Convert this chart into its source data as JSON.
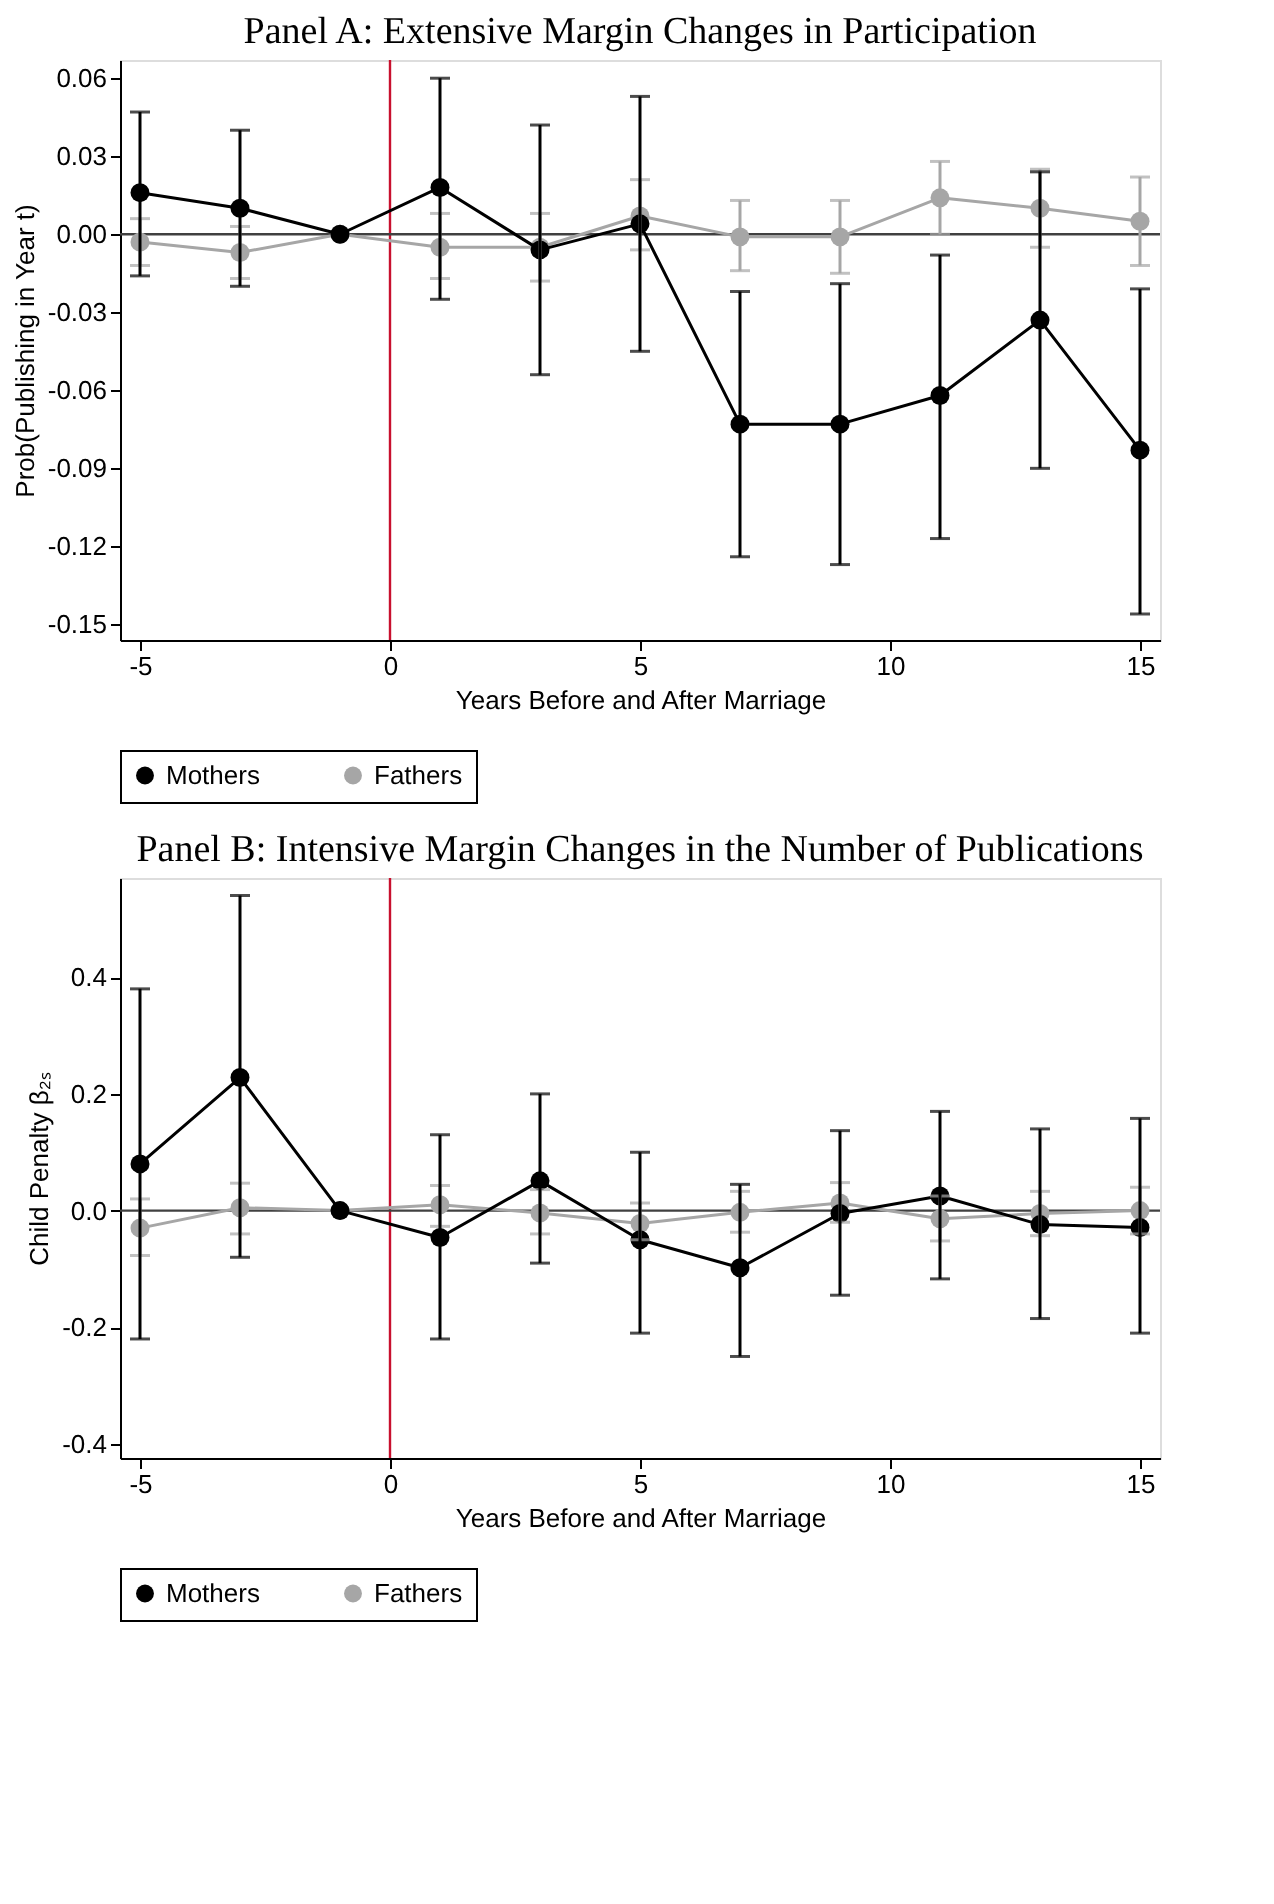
{
  "chart_data": [
    {
      "type": "line",
      "title": "Panel A: Extensive Margin Changes in Participation",
      "xlabel": "Years Before and After Marriage",
      "ylabel": "Prob(Publishing in Year t)",
      "x": [
        -5,
        -3,
        -1,
        1,
        3,
        5,
        7,
        9,
        11,
        13,
        15
      ],
      "series": [
        {
          "name": "Mothers",
          "color": "#000000",
          "values": [
            0.016,
            0.01,
            0,
            0.018,
            -0.006,
            0.004,
            -0.073,
            -0.073,
            -0.062,
            -0.033,
            -0.083
          ],
          "errors": [
            [
              -0.016,
              0.047
            ],
            [
              -0.02,
              0.04
            ],
            null,
            [
              -0.025,
              0.06
            ],
            [
              -0.054,
              0.042
            ],
            [
              -0.045,
              0.053
            ],
            [
              -0.124,
              -0.022
            ],
            [
              -0.127,
              -0.019
            ],
            [
              -0.117,
              -0.008
            ],
            [
              -0.09,
              0.024
            ],
            [
              -0.146,
              -0.021
            ]
          ]
        },
        {
          "name": "Fathers",
          "color": "#a6a6a6",
          "values": [
            -0.003,
            -0.007,
            0,
            -0.005,
            -0.005,
            0.007,
            -0.001,
            -0.001,
            0.014,
            0.01,
            0.005
          ],
          "errors": [
            [
              -0.012,
              0.006
            ],
            [
              -0.017,
              0.003
            ],
            null,
            [
              -0.017,
              0.008
            ],
            [
              -0.018,
              0.008
            ],
            [
              -0.006,
              0.021
            ],
            [
              -0.014,
              0.013
            ],
            [
              -0.015,
              0.013
            ],
            [
              0.0,
              0.028
            ],
            [
              -0.005,
              0.025
            ],
            [
              -0.012,
              0.022
            ]
          ]
        }
      ],
      "xlim": [
        -5.4,
        15.4
      ],
      "xticks": [
        -5,
        0,
        5,
        10,
        15
      ],
      "ylim": [
        -0.156,
        0.067
      ],
      "yticks": [
        0.06,
        0.03,
        {
          "value": 0,
          "label": "0.00"
        },
        -0.03,
        -0.06,
        -0.09,
        -0.12,
        -0.15
      ],
      "ref_lines": [
        {
          "axis": "x",
          "value": 0,
          "color": "#c8102e"
        },
        {
          "axis": "y",
          "value": 0,
          "color": "#404040"
        }
      ],
      "grid": false,
      "legend": "bottom",
      "marker": "circle",
      "line_style": "solid"
    },
    {
      "type": "line",
      "title": "Panel B: Intensive Margin Changes in the Number of Publications",
      "xlabel": "Years Before and After Marriage",
      "ylabel": "Child Penalty β₂ₛ",
      "x": [
        -5,
        -3,
        -1,
        1,
        3,
        5,
        7,
        9,
        11,
        13,
        15
      ],
      "series": [
        {
          "name": "Mothers",
          "color": "#000000",
          "values": [
            0.08,
            0.228,
            0,
            -0.046,
            0.051,
            -0.05,
            -0.098,
            -0.005,
            0.025,
            -0.024,
            -0.029
          ],
          "errors": [
            [
              -0.22,
              0.38
            ],
            [
              -0.08,
              0.54
            ],
            null,
            [
              -0.22,
              0.13
            ],
            [
              -0.09,
              0.2
            ],
            [
              -0.21,
              0.1
            ],
            [
              -0.25,
              0.045
            ],
            [
              -0.145,
              0.137
            ],
            [
              -0.117,
              0.17
            ],
            [
              -0.185,
              0.14
            ],
            [
              -0.21,
              0.158
            ]
          ]
        },
        {
          "name": "Fathers",
          "color": "#a6a6a6",
          "values": [
            -0.03,
            0.005,
            0,
            0.01,
            -0.004,
            -0.022,
            -0.003,
            0.013,
            -0.014,
            -0.005,
            0.0
          ],
          "errors": [
            [
              -0.077,
              0.02
            ],
            [
              -0.04,
              0.047
            ],
            null,
            [
              -0.027,
              0.043
            ],
            [
              -0.04,
              0.036
            ],
            [
              -0.05,
              0.013
            ],
            [
              -0.037,
              0.033
            ],
            [
              -0.02,
              0.048
            ],
            [
              -0.052,
              0.025
            ],
            [
              -0.043,
              0.033
            ],
            [
              -0.04,
              0.04
            ]
          ]
        }
      ],
      "xlim": [
        -5.4,
        15.4
      ],
      "xticks": [
        -5,
        0,
        5,
        10,
        15
      ],
      "ylim": [
        -0.424,
        0.57
      ],
      "yticks": [
        0.4,
        0.2,
        {
          "value": 0,
          "label": "0.0"
        },
        -0.2,
        -0.4
      ],
      "ref_lines": [
        {
          "axis": "x",
          "value": 0,
          "color": "#c8102e"
        },
        {
          "axis": "y",
          "value": 0,
          "color": "#404040"
        }
      ],
      "grid": false,
      "legend": "bottom",
      "marker": "circle",
      "line_style": "solid"
    }
  ]
}
